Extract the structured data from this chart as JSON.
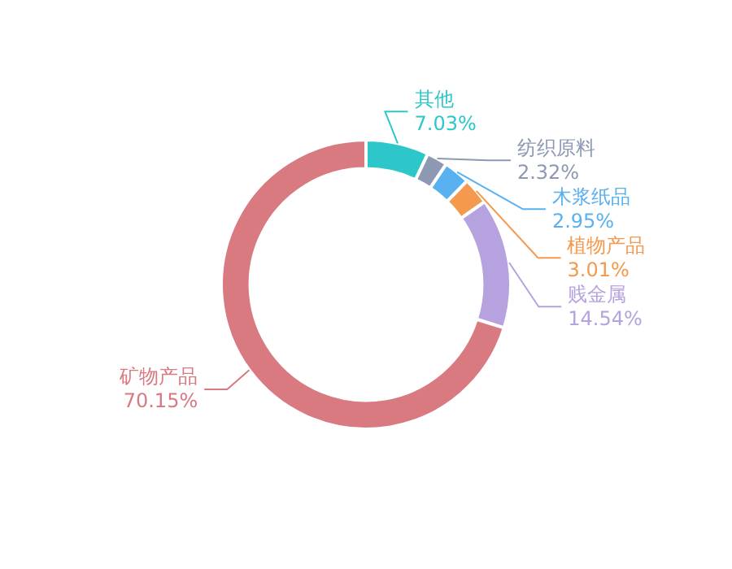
{
  "chart_data": {
    "type": "donut",
    "categories": [
      "其他",
      "纺织原料",
      "木浆纸品",
      "植物产品",
      "贱金属",
      "矿物产品"
    ],
    "values": [
      7.03,
      2.32,
      2.95,
      3.01,
      14.54,
      70.15
    ],
    "value_labels": [
      "7.03%",
      "2.32%",
      "2.95%",
      "3.01%",
      "14.54%",
      "70.15%"
    ],
    "colors": [
      "#2ec7c9",
      "#8d98b3",
      "#5ab1ef",
      "#f5994e",
      "#b6a2de",
      "#d87a80"
    ],
    "legend": false
  }
}
